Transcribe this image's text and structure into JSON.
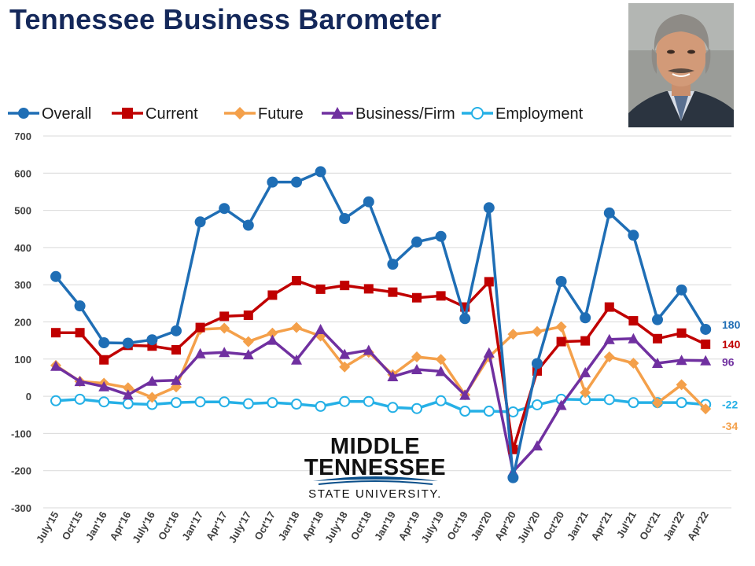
{
  "page": {
    "title": "Tennessee Business Barometer"
  },
  "logo": {
    "line1": "MIDDLE",
    "line2": "TENNESSEE",
    "line3": "STATE UNIVERSITY."
  },
  "chart_data": {
    "type": "line",
    "title": "Tennessee Business Barometer",
    "ylim": [
      -300,
      700
    ],
    "y_ticks": [
      -300,
      -200,
      -100,
      0,
      100,
      200,
      300,
      400,
      500,
      600,
      700
    ],
    "grid": true,
    "legend_position": "top",
    "categories": [
      "July'15",
      "Oct'15",
      "Jan'16",
      "Apr'16",
      "July'16",
      "Oct'16",
      "Jan'17",
      "Apr'17",
      "July'17",
      "Oct'17",
      "Jan'18",
      "Apr'18",
      "July'18",
      "Oct'18",
      "Jan'19",
      "Apr'19",
      "July'19",
      "Oct'19",
      "Jan'20",
      "Apr'20",
      "July'20",
      "Oct'20",
      "Jan'21",
      "Apr'21",
      "Jul'21",
      "Oct'21",
      "Jan'22",
      "Apr'22"
    ],
    "series": [
      {
        "name": "Overall",
        "color": "#1f6eb5",
        "marker": "circle",
        "values": [
          322,
          243,
          144,
          143,
          152,
          176,
          469,
          505,
          460,
          576,
          576,
          604,
          478,
          523,
          355,
          415,
          430,
          209,
          507,
          -219,
          88,
          309,
          211,
          493,
          433,
          206,
          286,
          180
        ],
        "end_label": "180"
      },
      {
        "name": "Current",
        "color": "#c00000",
        "marker": "square",
        "values": [
          171,
          171,
          98,
          137,
          135,
          125,
          185,
          215,
          218,
          272,
          311,
          288,
          298,
          289,
          280,
          265,
          270,
          240,
          308,
          -143,
          68,
          147,
          149,
          240,
          203,
          155,
          170,
          140
        ],
        "end_label": "140"
      },
      {
        "name": "Future",
        "color": "#f4a04a",
        "marker": "diamond",
        "values": [
          83,
          40,
          35,
          23,
          -3,
          25,
          180,
          183,
          147,
          170,
          185,
          162,
          79,
          118,
          58,
          106,
          99,
          4,
          106,
          167,
          174,
          187,
          10,
          106,
          89,
          -18,
          31,
          -34
        ],
        "end_label": "-34"
      },
      {
        "name": "Business/Firm",
        "color": "#7030a0",
        "marker": "triangle",
        "values": [
          81,
          40,
          26,
          4,
          41,
          43,
          115,
          118,
          112,
          151,
          98,
          180,
          113,
          124,
          53,
          72,
          67,
          3,
          117,
          -203,
          -133,
          -24,
          64,
          153,
          155,
          89,
          97,
          96
        ],
        "end_label": "96"
      },
      {
        "name": "Employment",
        "color": "#25b0e6",
        "marker": "open-circle",
        "values": [
          -12,
          -8,
          -15,
          -20,
          -22,
          -17,
          -15,
          -15,
          -20,
          -17,
          -21,
          -27,
          -14,
          -14,
          -30,
          -33,
          -12,
          -40,
          -40,
          -42,
          -23,
          -8,
          -9,
          -9,
          -17,
          -17,
          -17,
          -22
        ],
        "end_label": "-22"
      }
    ]
  }
}
